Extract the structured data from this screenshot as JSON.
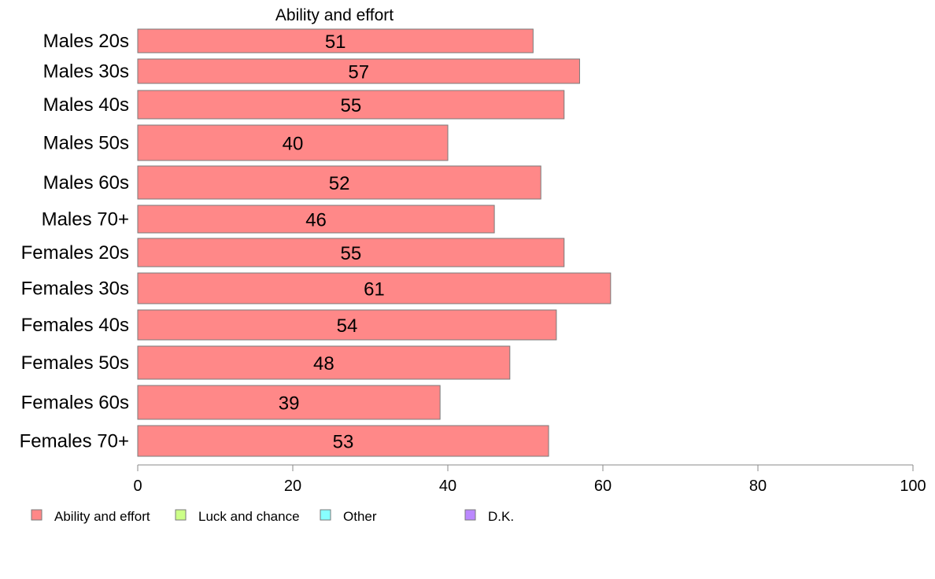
{
  "chart_data": {
    "type": "bar",
    "orientation": "horizontal",
    "title": "Ability and effort",
    "categories": [
      "Males 20s",
      "Males 30s",
      "Males 40s",
      "Males 50s",
      "Males 60s",
      "Males 70+",
      "Females 20s",
      "Females 30s",
      "Females 40s",
      "Females 50s",
      "Females 60s",
      "Females 70+"
    ],
    "series": [
      {
        "name": "Ability and effort",
        "color": "#ff8888",
        "values": [
          51,
          57,
          55,
          40,
          52,
          46,
          55,
          61,
          54,
          48,
          39,
          53
        ]
      }
    ],
    "data_labels": [
      "51",
      "57",
      "55",
      "40",
      "52",
      "46",
      "55",
      "61",
      "54",
      "48",
      "39",
      "53"
    ],
    "xlim": [
      0,
      100
    ],
    "xticks": [
      0,
      20,
      40,
      60,
      80,
      100
    ],
    "xtick_labels": [
      "0",
      "20",
      "40",
      "60",
      "80",
      "100"
    ],
    "grid": false,
    "legend": {
      "placement": "bottom",
      "items": [
        {
          "label": "Ability and effort",
          "color": "#ff8888"
        },
        {
          "label": "Luck and chance",
          "color": "#ccff88"
        },
        {
          "label": "Other",
          "color": "#88ffff"
        },
        {
          "label": "D.K.",
          "color": "#bb88ff"
        }
      ]
    }
  }
}
